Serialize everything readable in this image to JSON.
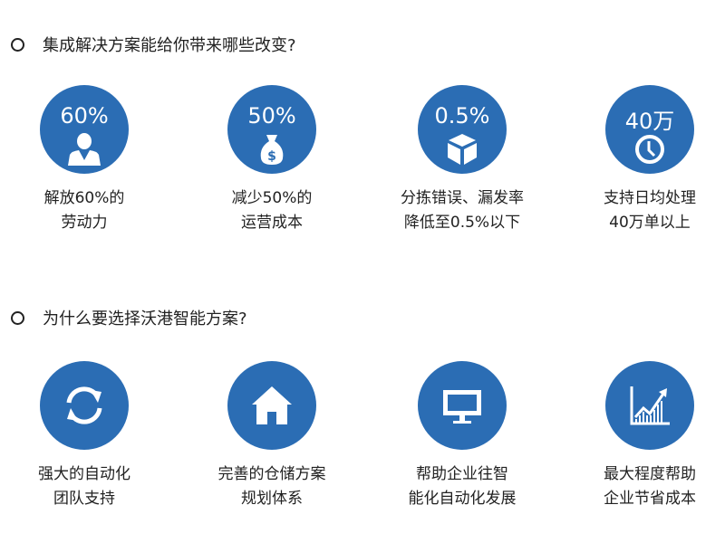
{
  "section1": {
    "title": "集成解决方案能给你带来哪些改变?",
    "items": [
      {
        "value": "60%",
        "icon": "person-icon",
        "line1": "解放60%的",
        "line2": "劳动力"
      },
      {
        "value": "50%",
        "icon": "money-bag-icon",
        "line1": "减少50%的",
        "line2": "运营成本"
      },
      {
        "value": "0.5%",
        "icon": "box-icon",
        "line1": "分拣错误、漏发率",
        "line2": "降低至0.5%以下"
      },
      {
        "value": "40万",
        "icon": "clock-icon",
        "line1": "支持日均处理",
        "line2": "40万单以上"
      }
    ]
  },
  "section2": {
    "title": "为什么要选择沃港智能方案?",
    "items": [
      {
        "icon": "refresh-icon",
        "line1": "强大的自动化",
        "line2": "团队支持"
      },
      {
        "icon": "house-icon",
        "line1": "完善的仓储方案",
        "line2": "规划体系"
      },
      {
        "icon": "monitor-icon",
        "line1": "帮助企业往智",
        "line2": "能化自动化发展"
      },
      {
        "icon": "growth-chart-icon",
        "line1": "最大程度帮助",
        "line2": "企业节省成本"
      }
    ]
  },
  "colors": {
    "accent": "#2b6db4"
  }
}
